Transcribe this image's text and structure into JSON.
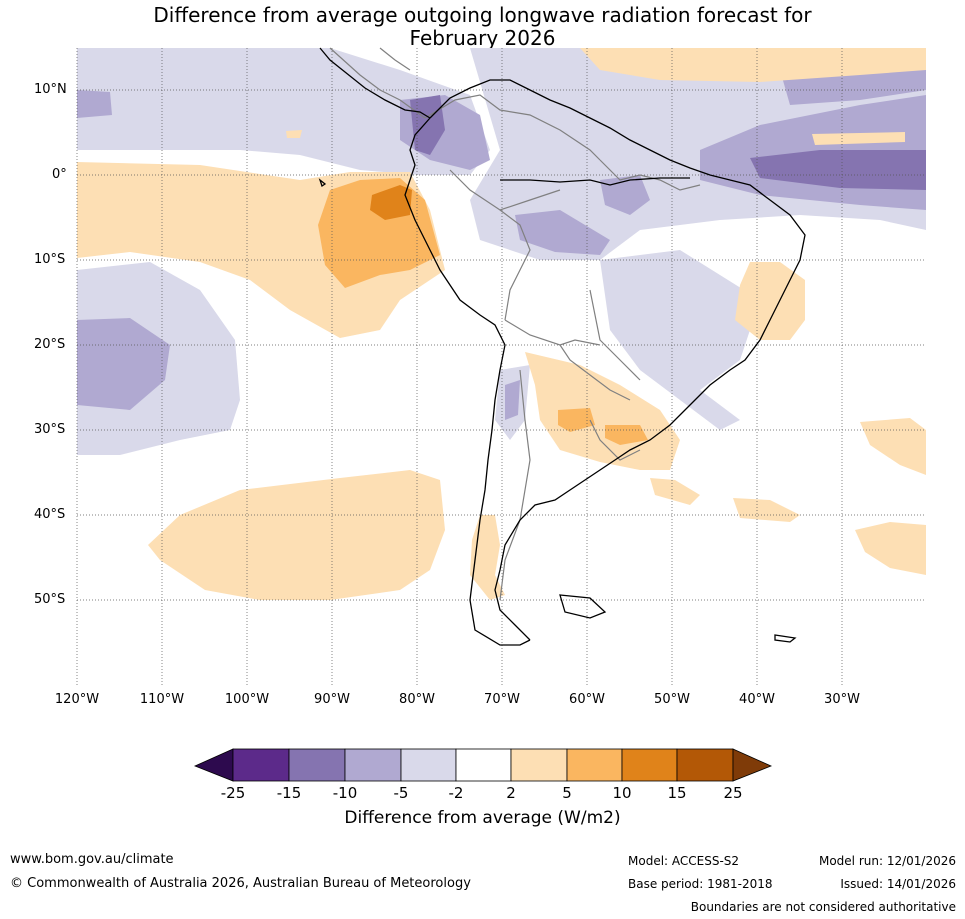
{
  "title": {
    "line1": "Difference from average outgoing longwave radiation forecast for",
    "line2": "February 2026"
  },
  "latitude_labels": [
    "10°N",
    "0°",
    "10°S",
    "20°S",
    "30°S",
    "40°S",
    "50°S"
  ],
  "longitude_labels": [
    "120°W",
    "110°W",
    "100°W",
    "90°W",
    "80°W",
    "70°W",
    "60°W",
    "50°W",
    "40°W",
    "30°W"
  ],
  "colorbar": {
    "ticks": [
      "-25",
      "-15",
      "-10",
      "-5",
      "-2",
      "2",
      "5",
      "10",
      "15",
      "25"
    ],
    "colors": [
      "#2d0a4e",
      "#5c2a8a",
      "#8574b0",
      "#b0a9d1",
      "#d9d9ea",
      "#ffffff",
      "#fddfb4",
      "#fab660",
      "#e0831a",
      "#b35806",
      "#7f3b08"
    ],
    "title": "Difference from average (W/m2)"
  },
  "footer": {
    "url": "www.bom.gov.au/climate",
    "copyright": "© Commonwealth of Australia 2026, Australian Bureau of Meteorology",
    "model": "Model: ACCESS-S2",
    "base_period": "Base period: 1981-2018",
    "model_run": "Model run: 12/01/2026",
    "issued": "Issued: 14/01/2026",
    "disclaimer": "Boundaries are not considered authoritative"
  }
}
